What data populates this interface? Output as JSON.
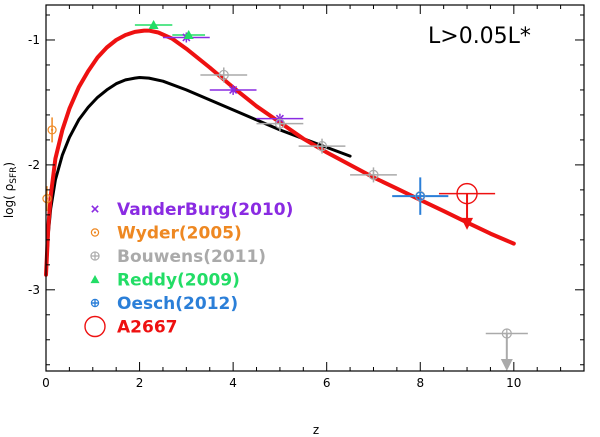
{
  "chart_data": {
    "type": "scatter",
    "title": "",
    "annotation": "L>0.05L*",
    "xlabel": "z",
    "ylabel_main": "log( ρ",
    "ylabel_sub": "SFR",
    "ylabel_close": ")",
    "xlim": [
      0,
      11.5
    ],
    "ylim": [
      -3.65,
      -0.72
    ],
    "x_ticks": [
      "0",
      "2",
      "4",
      "6",
      "8",
      "10"
    ],
    "y_ticks": [
      "-1",
      "-2",
      "-3"
    ],
    "x_tick_values": [
      0,
      2,
      4,
      6,
      8,
      10
    ],
    "y_tick_values": [
      -1,
      -2,
      -3
    ],
    "curves": [
      {
        "name": "black-model",
        "color": "#000000",
        "x": [
          0,
          0.05,
          0.1,
          0.2,
          0.35,
          0.5,
          0.7,
          0.9,
          1.1,
          1.3,
          1.5,
          1.7,
          1.9,
          2.0,
          2.2,
          2.5,
          3.0,
          3.5,
          4.0,
          4.5,
          5.0,
          5.5,
          6.0,
          6.5
        ],
        "y": [
          -2.88,
          -2.55,
          -2.35,
          -2.12,
          -1.92,
          -1.78,
          -1.64,
          -1.54,
          -1.46,
          -1.4,
          -1.35,
          -1.32,
          -1.305,
          -1.3,
          -1.305,
          -1.33,
          -1.4,
          -1.48,
          -1.56,
          -1.64,
          -1.72,
          -1.79,
          -1.86,
          -1.93
        ]
      },
      {
        "name": "red-model",
        "color": "#ee1111",
        "x": [
          0,
          0.05,
          0.1,
          0.2,
          0.35,
          0.5,
          0.7,
          0.9,
          1.1,
          1.3,
          1.5,
          1.7,
          1.9,
          2.1,
          2.2,
          2.4,
          2.7,
          3.0,
          3.5,
          4.0,
          4.5,
          5.0,
          5.5,
          6.0,
          6.5,
          7.0,
          7.5,
          8.0,
          8.5,
          9.0,
          9.5,
          10.0
        ],
        "y": [
          -2.88,
          -2.5,
          -2.25,
          -1.95,
          -1.72,
          -1.55,
          -1.38,
          -1.25,
          -1.14,
          -1.06,
          -1.0,
          -0.96,
          -0.935,
          -0.925,
          -0.925,
          -0.94,
          -0.99,
          -1.07,
          -1.22,
          -1.38,
          -1.53,
          -1.66,
          -1.79,
          -1.9,
          -2.0,
          -2.1,
          -2.19,
          -2.28,
          -2.37,
          -2.46,
          -2.55,
          -2.63
        ]
      }
    ],
    "series": [
      {
        "name": "VanderBurg(2010)",
        "marker": "x",
        "color": "#8a2be2",
        "points": [
          {
            "x": 3.0,
            "y": -0.98,
            "xerr": 0.5,
            "yerr": 0.04
          },
          {
            "x": 4.0,
            "y": -1.4,
            "xerr": 0.5,
            "yerr": 0.04
          },
          {
            "x": 5.0,
            "y": -1.63,
            "xerr": 0.5,
            "yerr": 0.04
          }
        ]
      },
      {
        "name": "Wyder(2005)",
        "marker": "circle-dot",
        "color": "#ee8822",
        "points": [
          {
            "x": 0.13,
            "y": -1.72,
            "xerr": 0.0,
            "yerr": 0.1
          },
          {
            "x": 0.02,
            "y": -2.27,
            "xerr": 0.0,
            "yerr": 0.1
          }
        ]
      },
      {
        "name": "Bouwens(2011)",
        "marker": "circle-plus",
        "color": "#aaaaaa",
        "points": [
          {
            "x": 3.8,
            "y": -1.28,
            "xerr": 0.5,
            "yerr": 0.06
          },
          {
            "x": 5.0,
            "y": -1.67,
            "xerr": 0.5,
            "yerr": 0.06
          },
          {
            "x": 5.9,
            "y": -1.85,
            "xerr": 0.5,
            "yerr": 0.06
          },
          {
            "x": 7.0,
            "y": -2.08,
            "xerr": 0.5,
            "yerr": 0.06
          },
          {
            "x": 8.0,
            "y": -2.25,
            "xerr": 0.5,
            "yerr": 0.06
          }
        ]
      },
      {
        "name": "Reddy(2009)",
        "marker": "triangle",
        "color": "#22dd66",
        "points": [
          {
            "x": 2.3,
            "y": -0.88,
            "xerr": 0.4,
            "yerr": 0.03
          },
          {
            "x": 3.05,
            "y": -0.96,
            "xerr": 0.35,
            "yerr": 0.03
          }
        ]
      },
      {
        "name": "Oesch(2012)",
        "marker": "cross",
        "color": "#2b7fd8",
        "points": [
          {
            "x": 8.0,
            "y": -2.25,
            "xerr": 0.6,
            "yerr": 0.15
          }
        ]
      },
      {
        "name": "A2667",
        "marker": "big-circle",
        "color": "#ee1111",
        "points": [
          {
            "x": 9.0,
            "y": -2.23,
            "xerr": 0.6,
            "yerr": 0.0
          }
        ]
      }
    ],
    "upper_limits": [
      {
        "series": "A2667",
        "x": 9.0,
        "y": -2.23,
        "to_y": -2.52,
        "color": "#ee1111"
      },
      {
        "series": "Bouwens(2011)",
        "x": 9.85,
        "y": -3.35,
        "to_y": -3.65,
        "color": "#aaaaaa"
      }
    ],
    "extra_points": [
      {
        "series": "Bouwens(2011)",
        "x": 9.85,
        "y": -3.35,
        "xerr": 0.45,
        "color": "#aaaaaa"
      }
    ],
    "legend": [
      {
        "label": "VanderBurg(2010)",
        "marker": "x",
        "color": "#8a2be2"
      },
      {
        "label": "Wyder(2005)",
        "marker": "circle-dot",
        "color": "#ee8822"
      },
      {
        "label": "Bouwens(2011)",
        "marker": "circle-plus",
        "color": "#aaaaaa"
      },
      {
        "label": "Reddy(2009)",
        "marker": "triangle",
        "color": "#22dd66"
      },
      {
        "label": "Oesch(2012)",
        "marker": "cross",
        "color": "#2b7fd8"
      },
      {
        "label": "A2667",
        "marker": "big-circle",
        "color": "#ee1111"
      }
    ],
    "legend_position": "left-center"
  }
}
